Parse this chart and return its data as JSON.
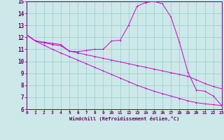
{
  "xlabel": "Windchill (Refroidissement éolien,°C)",
  "bg_color": "#cce8e8",
  "grid_color": "#99cccc",
  "line_color": "#cc00cc",
  "spine_color": "#660066",
  "xlim": [
    0,
    23
  ],
  "ylim": [
    6,
    15
  ],
  "xticks": [
    0,
    1,
    2,
    3,
    4,
    5,
    6,
    7,
    8,
    9,
    10,
    11,
    12,
    13,
    14,
    15,
    16,
    17,
    18,
    19,
    20,
    21,
    22,
    23
  ],
  "yticks": [
    6,
    7,
    8,
    9,
    10,
    11,
    12,
    13,
    14,
    15
  ],
  "line1_x": [
    0,
    1,
    2,
    3,
    4,
    5,
    6,
    7,
    8,
    9,
    10,
    11,
    12,
    13,
    14,
    15,
    16,
    17,
    18,
    19,
    20,
    21,
    22,
    23
  ],
  "line1_y": [
    12.2,
    11.7,
    11.6,
    11.5,
    11.4,
    10.85,
    10.8,
    10.9,
    11.0,
    11.0,
    11.7,
    11.75,
    13.0,
    14.6,
    14.9,
    15.0,
    14.8,
    13.7,
    11.6,
    9.1,
    7.6,
    7.5,
    7.1,
    6.3
  ],
  "line2_x": [
    0,
    1,
    2,
    3,
    4,
    5,
    6,
    7,
    8,
    9,
    10,
    11,
    12,
    13,
    14,
    15,
    16,
    17,
    18,
    19,
    20,
    21,
    22,
    23
  ],
  "line2_y": [
    12.2,
    11.7,
    11.55,
    11.4,
    11.3,
    10.85,
    10.7,
    10.55,
    10.4,
    10.25,
    10.1,
    9.95,
    9.8,
    9.65,
    9.5,
    9.35,
    9.2,
    9.05,
    8.9,
    8.75,
    8.45,
    8.15,
    7.9,
    7.7
  ],
  "line3_x": [
    0,
    1,
    2,
    3,
    4,
    5,
    6,
    7,
    8,
    9,
    10,
    11,
    12,
    13,
    14,
    15,
    16,
    17,
    18,
    19,
    20,
    21,
    22,
    23
  ],
  "line3_y": [
    12.2,
    11.7,
    11.35,
    11.0,
    10.7,
    10.4,
    10.1,
    9.8,
    9.5,
    9.2,
    8.9,
    8.6,
    8.3,
    8.0,
    7.75,
    7.5,
    7.3,
    7.1,
    6.9,
    6.7,
    6.55,
    6.45,
    6.38,
    6.3
  ]
}
